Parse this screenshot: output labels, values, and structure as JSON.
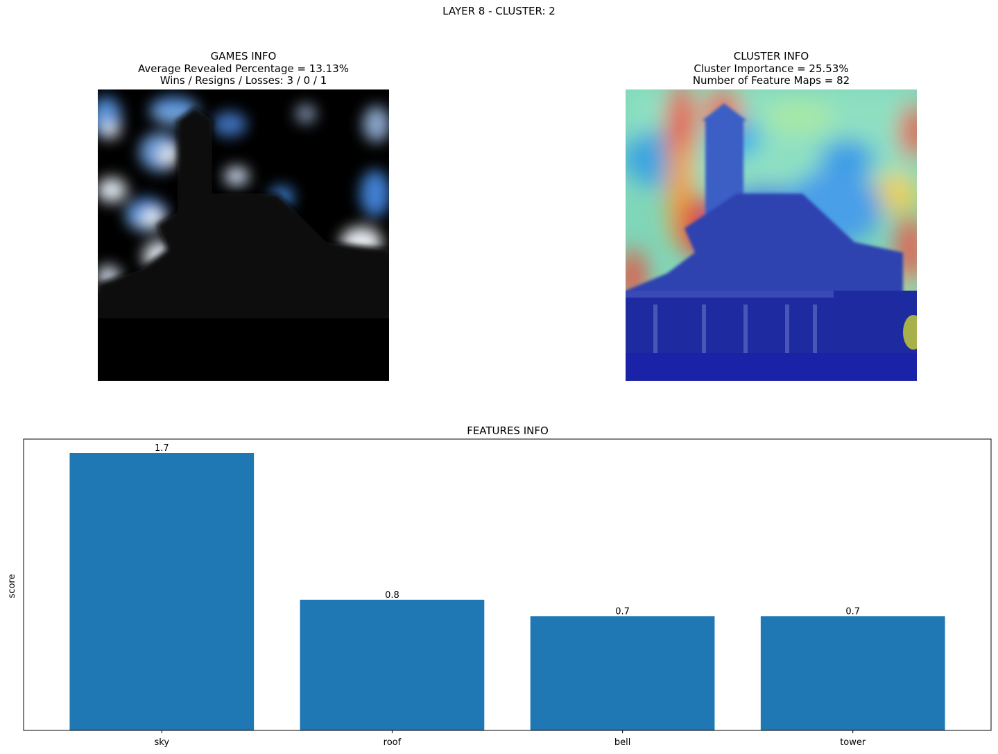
{
  "figure": {
    "suptitle": "LAYER 8 - CLUSTER: 2"
  },
  "games_panel": {
    "title": "GAMES INFO",
    "line1": "Average Revealed Percentage = 13.13%",
    "line2": "Wins / Resigns / Losses: 3 / 0 / 1",
    "image_alt": "masked church image with revealed sky patches"
  },
  "cluster_panel": {
    "title": "CLUSTER INFO",
    "line1": "Cluster Importance = 25.53%",
    "line2": "Number of Feature Maps = 82",
    "image_alt": "church image with jet heatmap overlay"
  },
  "colors": {
    "bar": "#1f77b4",
    "axis": "#000000"
  },
  "chart_data": {
    "type": "bar",
    "title": "FEATURES INFO",
    "xlabel": "",
    "ylabel": "score",
    "categories": [
      "sky",
      "roof",
      "bell",
      "tower"
    ],
    "values": [
      1.7,
      0.8,
      0.7,
      0.7
    ],
    "value_labels": [
      "1.7",
      "0.8",
      "0.7",
      "0.7"
    ],
    "ylim": [
      0,
      1.785
    ],
    "y_ticks_shown": false,
    "grid": false,
    "legend": "none"
  }
}
